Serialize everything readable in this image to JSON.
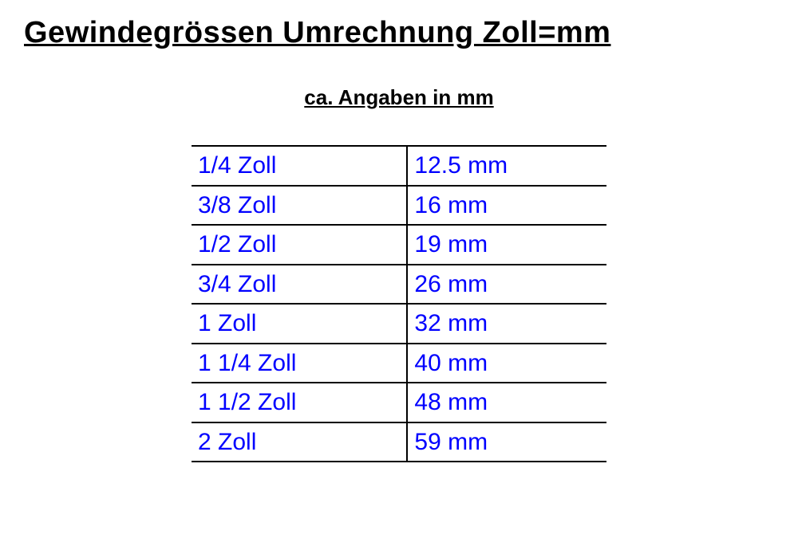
{
  "heading": "Gewindegrössen Umrechnung Zoll=mm",
  "subheading": "ca. Angaben in mm",
  "table": {
    "text_color": "#0000ff",
    "border_color": "#000000",
    "columns": [
      "zoll",
      "mm"
    ],
    "rows": [
      {
        "zoll": "1/4 Zoll",
        "mm": "12.5 mm"
      },
      {
        "zoll": "3/8 Zoll",
        "mm": "16 mm"
      },
      {
        "zoll": "1/2 Zoll",
        "mm": "19 mm"
      },
      {
        "zoll": "3/4 Zoll",
        "mm": "26 mm"
      },
      {
        "zoll": "1 Zoll",
        "mm": "32 mm"
      },
      {
        "zoll": "1 1/4 Zoll",
        "mm": "40 mm"
      },
      {
        "zoll": "1 1/2 Zoll",
        "mm": "48 mm"
      },
      {
        "zoll": "2 Zoll",
        "mm": "59 mm"
      }
    ]
  },
  "style": {
    "background_color": "#ffffff",
    "title_fontsize": 38,
    "subtitle_fontsize": 26,
    "cell_fontsize": 30,
    "title_color": "#000000",
    "link_text_color": "#0000ff"
  }
}
